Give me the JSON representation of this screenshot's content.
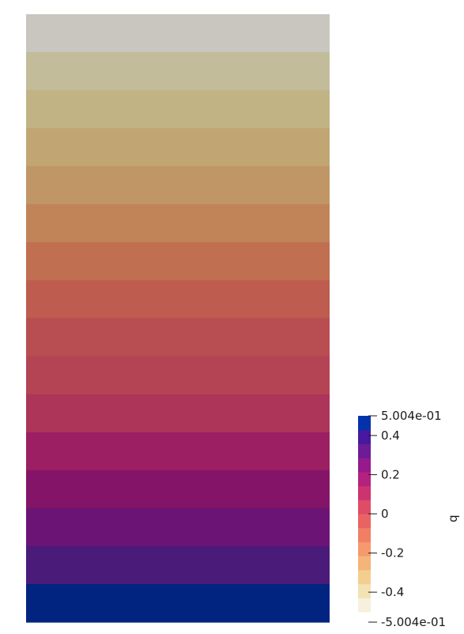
{
  "chart_data": {
    "type": "heatmap",
    "field_name": "q",
    "range": [
      -0.5004,
      0.5004
    ],
    "bands_top_to_bottom": [
      "#c8c6bf",
      "#c2bc9b",
      "#c1b384",
      "#c1a673",
      "#c19666",
      "#c18458",
      "#c06f50",
      "#bd5c4f",
      "#b84d52",
      "#b44454",
      "#ad3559",
      "#9c1f63",
      "#841468",
      "#6b1476",
      "#4a1b79",
      "#002480"
    ],
    "colorbar": {
      "colors_bottom_to_top": [
        "#f6f0dc",
        "#f2e2b4",
        "#f3cf8f",
        "#f4b47a",
        "#f49a6e",
        "#f17f66",
        "#ea6363",
        "#df4c66",
        "#cc336f",
        "#b42280",
        "#951a8c",
        "#6e1b96",
        "#4718a0",
        "#0233ab"
      ],
      "ticks": [
        {
          "value": 0.5004,
          "label": "5.004e-01"
        },
        {
          "value": 0.4,
          "label": "0.4"
        },
        {
          "value": 0.2,
          "label": "0.2"
        },
        {
          "value": 0,
          "label": "0"
        },
        {
          "value": -0.2,
          "label": "-0.2"
        },
        {
          "value": -0.4,
          "label": "-0.4"
        },
        {
          "value": -0.5004,
          "label": "-5.004e-01"
        }
      ],
      "title": "q"
    }
  }
}
